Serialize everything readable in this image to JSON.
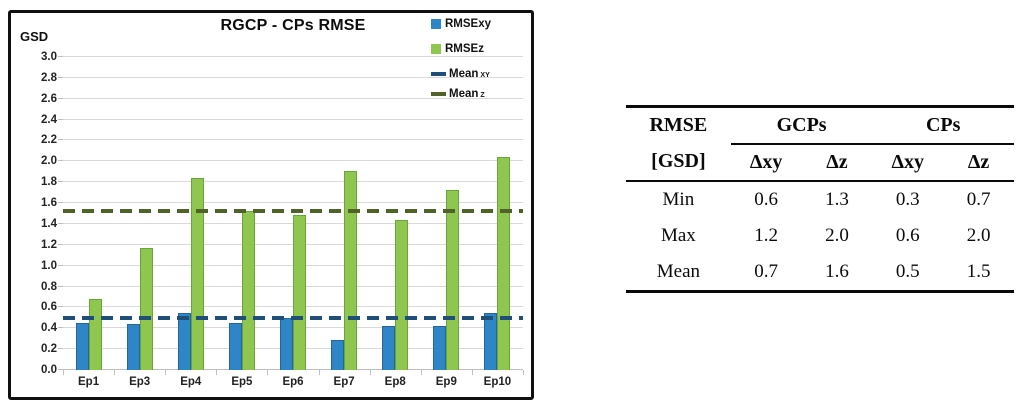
{
  "chart_data": {
    "type": "bar",
    "title": "RGCP - CPs RMSE",
    "y_axis_label": "GSD",
    "categories": [
      "Ep1",
      "Ep3",
      "Ep4",
      "Ep5",
      "Ep6",
      "Ep7",
      "Ep8",
      "Ep9",
      "Ep10"
    ],
    "series": [
      {
        "name": "RMSExy",
        "color": "#2e86c6",
        "border": "#24669a",
        "values": [
          0.45,
          0.44,
          0.55,
          0.45,
          0.5,
          0.29,
          0.42,
          0.42,
          0.55
        ]
      },
      {
        "name": "RMSEz",
        "color": "#8ec64f",
        "border": "#69a53b",
        "values": [
          0.68,
          1.17,
          1.84,
          1.52,
          1.49,
          1.91,
          1.44,
          1.73,
          2.04
        ]
      }
    ],
    "mean_lines": [
      {
        "label": "Mean",
        "sub": "xy",
        "value": 0.5,
        "color": "#1f4e79"
      },
      {
        "label": "Mean",
        "sub": "z",
        "value": 1.52,
        "color": "#4f6228"
      }
    ],
    "ylim": [
      0,
      3.0
    ],
    "ytick_step": 0.2,
    "grid": true,
    "legend_position": "top-right",
    "colors": {
      "gridline": "#d9d9d9",
      "axis": "#bfbfbf",
      "rmse_xy": "#2e86c6",
      "rmse_z": "#8ec64f",
      "mean_xy": "#1f4e79",
      "mean_z": "#4f6228"
    }
  },
  "table": {
    "header": {
      "row1_col1": "RMSE",
      "row2_col1": "[GSD]",
      "groups": [
        {
          "label": "GCPs"
        },
        {
          "label": "CPs"
        }
      ],
      "subheaders": [
        "Δxy",
        "Δz",
        "Δxy",
        "Δz"
      ]
    },
    "rows": [
      {
        "label": "Min",
        "values": [
          "0.6",
          "1.3",
          "0.3",
          "0.7"
        ]
      },
      {
        "label": "Max",
        "values": [
          "1.2",
          "2.0",
          "0.6",
          "2.0"
        ]
      },
      {
        "label": "Mean",
        "values": [
          "0.7",
          "1.6",
          "0.5",
          "1.5"
        ]
      }
    ]
  }
}
